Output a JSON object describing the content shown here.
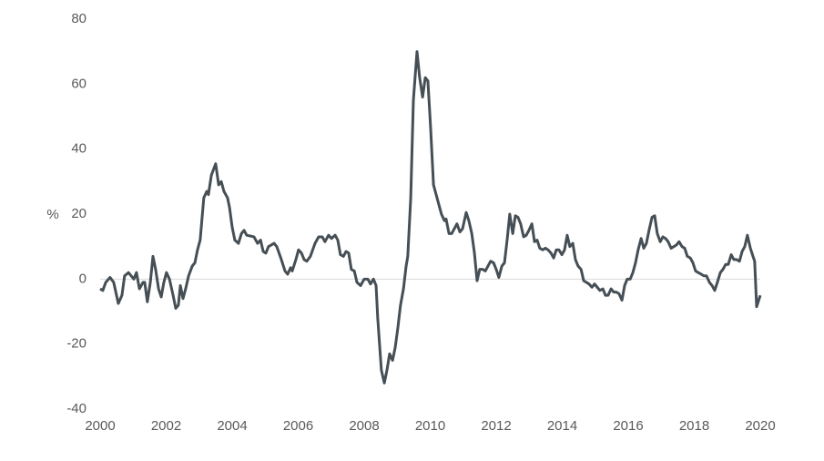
{
  "chart_data": {
    "type": "line",
    "y_label": "%",
    "xlim": [
      2000,
      2020
    ],
    "xticks": [
      2000,
      2002,
      2004,
      2006,
      2008,
      2010,
      2012,
      2014,
      2016,
      2018,
      2020
    ],
    "ylim": [
      -40,
      80
    ],
    "yticks": [
      -40,
      -20,
      0,
      20,
      40,
      60,
      80
    ],
    "zero_line": true,
    "x": [
      2000,
      2000.08,
      2000.17,
      2000.3,
      2000.41,
      2000.55,
      2000.66,
      2000.74,
      2000.86,
      2000.94,
      2001.02,
      2001.1,
      2001.19,
      2001.3,
      2001.35,
      2001.43,
      2001.52,
      2001.6,
      2001.68,
      2001.77,
      2001.85,
      2001.93,
      2002.01,
      2002.1,
      2002.21,
      2002.29,
      2002.37,
      2002.43,
      2002.51,
      2002.59,
      2002.68,
      2002.79,
      2002.87,
      2002.95,
      2003.03,
      2003.14,
      2003.23,
      2003.28,
      2003.37,
      2003.5,
      2003.59,
      2003.67,
      2003.75,
      2003.86,
      2003.92,
      2004.0,
      2004.08,
      2004.19,
      2004.28,
      2004.36,
      2004.44,
      2004.66,
      2004.77,
      2004.86,
      2004.94,
      2005.02,
      2005.1,
      2005.27,
      2005.35,
      2005.49,
      2005.6,
      2005.68,
      2005.77,
      2005.82,
      2005.93,
      2006.01,
      2006.1,
      2006.18,
      2006.26,
      2006.37,
      2006.51,
      2006.62,
      2006.73,
      2006.81,
      2006.92,
      2007.01,
      2007.12,
      2007.2,
      2007.28,
      2007.37,
      2007.45,
      2007.53,
      2007.61,
      2007.7,
      2007.78,
      2007.89,
      2008.0,
      2008.11,
      2008.19,
      2008.28,
      2008.36,
      2008.41,
      2008.52,
      2008.61,
      2008.69,
      2008.77,
      2008.86,
      2008.94,
      2009.02,
      2009.1,
      2009.19,
      2009.27,
      2009.32,
      2009.41,
      2009.49,
      2009.6,
      2009.68,
      2009.77,
      2009.85,
      2009.93,
      2010.01,
      2010.1,
      2010.18,
      2010.26,
      2010.34,
      2010.43,
      2010.48,
      2010.57,
      2010.65,
      2010.73,
      2010.81,
      2010.9,
      2010.98,
      2011.09,
      2011.17,
      2011.26,
      2011.34,
      2011.42,
      2011.5,
      2011.59,
      2011.67,
      2011.75,
      2011.83,
      2011.92,
      2012.0,
      2012.08,
      2012.17,
      2012.25,
      2012.33,
      2012.41,
      2012.5,
      2012.58,
      2012.66,
      2012.74,
      2012.83,
      2012.91,
      2012.99,
      2013.08,
      2013.16,
      2013.24,
      2013.32,
      2013.41,
      2013.49,
      2013.57,
      2013.66,
      2013.74,
      2013.82,
      2013.9,
      2013.99,
      2014.07,
      2014.15,
      2014.23,
      2014.32,
      2014.4,
      2014.48,
      2014.57,
      2014.65,
      2014.73,
      2014.81,
      2014.9,
      2014.98,
      2015.06,
      2015.14,
      2015.23,
      2015.31,
      2015.39,
      2015.48,
      2015.56,
      2015.64,
      2015.72,
      2015.81,
      2015.89,
      2015.97,
      2016.06,
      2016.14,
      2016.22,
      2016.3,
      2016.39,
      2016.47,
      2016.55,
      2016.63,
      2016.72,
      2016.8,
      2016.88,
      2016.97,
      2017.05,
      2017.13,
      2017.21,
      2017.3,
      2017.38,
      2017.46,
      2017.54,
      2017.63,
      2017.71,
      2017.79,
      2017.88,
      2017.96,
      2018.04,
      2018.12,
      2018.21,
      2018.29,
      2018.37,
      2018.46,
      2018.54,
      2018.62,
      2018.7,
      2018.79,
      2018.87,
      2018.95,
      2019.03,
      2019.12,
      2019.2,
      2019.28,
      2019.37,
      2019.45,
      2019.53,
      2019.61,
      2019.7,
      2019.78,
      2019.83,
      2019.89,
      2020.0
    ],
    "series": [
      {
        "color": "#454f55",
        "values": [
          -3,
          -3.5,
          -1,
          0.5,
          -1,
          -7.5,
          -5,
          1,
          2,
          1,
          0,
          2,
          -3,
          -1,
          -1,
          -7,
          -1,
          7,
          3,
          -3,
          -5.5,
          -1,
          2,
          0,
          -5,
          -9,
          -8,
          -2,
          -6,
          -3,
          1,
          4,
          5,
          9,
          12,
          25,
          27,
          26,
          32,
          35.5,
          29,
          30,
          27,
          25,
          22,
          16,
          12,
          11,
          14,
          15,
          13.5,
          13,
          11,
          12,
          8.5,
          8,
          10,
          11,
          10,
          6,
          2.5,
          1.5,
          3.5,
          2.5,
          6,
          9,
          8,
          6,
          5.5,
          7,
          11,
          13,
          13,
          11.5,
          13.5,
          12.5,
          13.5,
          12,
          7.5,
          7,
          8.5,
          8,
          3,
          2.5,
          -1,
          -2,
          0,
          0,
          -1.5,
          0,
          -2,
          -12,
          -28,
          -32,
          -28,
          -23,
          -25,
          -21,
          -15,
          -8,
          -3,
          4,
          7,
          25,
          55,
          70,
          62,
          56,
          62,
          61,
          47,
          29,
          26,
          23,
          20,
          18,
          18.5,
          14,
          14,
          15.5,
          17,
          14.5,
          15.5,
          20.5,
          18,
          14,
          8,
          -0.5,
          3,
          3,
          2.5,
          4,
          5.5,
          5,
          3,
          0.5,
          4,
          5,
          12,
          20,
          14,
          19.5,
          19,
          17,
          13,
          13.5,
          15,
          17,
          11.5,
          12,
          9.5,
          9,
          9.5,
          9,
          8,
          6.5,
          9,
          9,
          7.5,
          9,
          13.5,
          10,
          11,
          6,
          4,
          3,
          -0.5,
          -1,
          -1.5,
          -2.5,
          -1.5,
          -2.5,
          -3.5,
          -3,
          -5,
          -5,
          -3,
          -4,
          -4,
          -4.5,
          -6.5,
          -2,
          0,
          0,
          2,
          5,
          9,
          12.5,
          9.5,
          11,
          15,
          19,
          19.5,
          14,
          11.5,
          13,
          12.5,
          11.5,
          9.5,
          10,
          10.5,
          11.5,
          10,
          9.5,
          7,
          6.5,
          5,
          2.5,
          2,
          1.5,
          1,
          1,
          -1,
          -2,
          -3.5,
          -1,
          2,
          3,
          4.5,
          4.5,
          7.5,
          6,
          6,
          5.5,
          8.5,
          10,
          13.5,
          9.5,
          7,
          5.5,
          -8.5,
          -5
        ]
      }
    ]
  }
}
